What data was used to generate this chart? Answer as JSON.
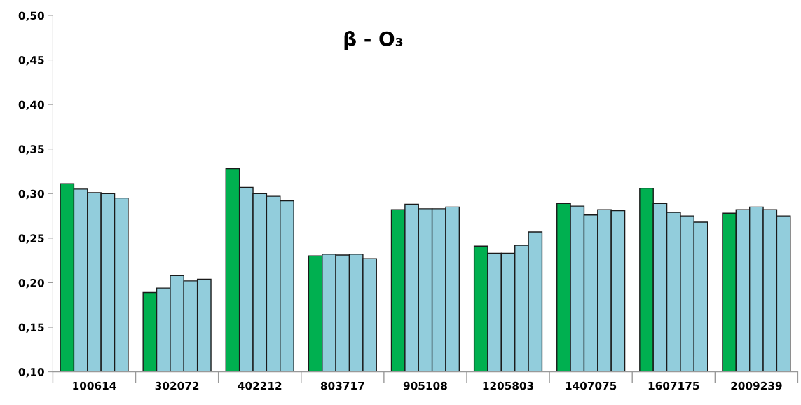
{
  "chart_data": {
    "type": "bar",
    "title": "β - O₃",
    "categories": [
      "100614",
      "302072",
      "402212",
      "803717",
      "905108",
      "1205803",
      "1407075",
      "1607175",
      "2009239"
    ],
    "series": [
      {
        "color": "#00b050",
        "values": [
          0.311,
          0.189,
          0.328,
          0.23,
          0.282,
          0.241,
          0.289,
          0.306,
          0.278
        ]
      },
      {
        "color": "#92cddc",
        "values": [
          0.305,
          0.194,
          0.307,
          0.232,
          0.288,
          0.233,
          0.286,
          0.289,
          0.282
        ]
      },
      {
        "color": "#92cddc",
        "values": [
          0.301,
          0.208,
          0.3,
          0.231,
          0.283,
          0.233,
          0.276,
          0.279,
          0.285
        ]
      },
      {
        "color": "#92cddc",
        "values": [
          0.3,
          0.202,
          0.297,
          0.232,
          0.283,
          0.242,
          0.282,
          0.275,
          0.282
        ]
      },
      {
        "color": "#92cddc",
        "values": [
          0.295,
          0.204,
          0.292,
          0.227,
          0.285,
          0.257,
          0.281,
          0.268,
          0.275
        ]
      }
    ],
    "ylim": [
      0.1,
      0.5
    ],
    "yticks": [
      {
        "value": 0.1,
        "label": "0,10"
      },
      {
        "value": 0.15,
        "label": "0,15"
      },
      {
        "value": 0.2,
        "label": "0,20"
      },
      {
        "value": 0.25,
        "label": "0,25"
      },
      {
        "value": 0.3,
        "label": "0,30"
      },
      {
        "value": 0.35,
        "label": "0,35"
      },
      {
        "value": 0.4,
        "label": "0,40"
      },
      {
        "value": 0.45,
        "label": "0,45"
      },
      {
        "value": 0.5,
        "label": "0,50"
      }
    ],
    "grid": false,
    "legend": false
  }
}
